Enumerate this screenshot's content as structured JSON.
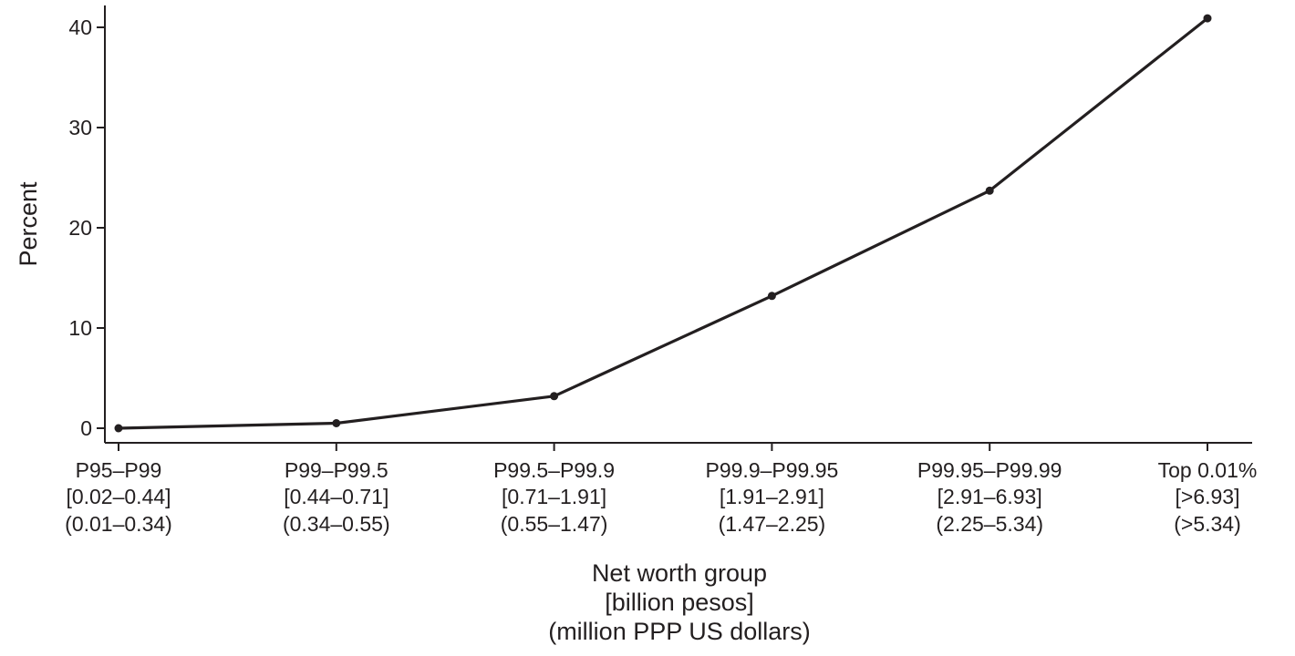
{
  "chart_data": {
    "type": "line",
    "title": "",
    "ylabel": "Percent",
    "xlabel_lines": [
      "Net worth group",
      "[billion pesos]",
      "(million PPP US dollars)"
    ],
    "ylim": [
      0,
      41
    ],
    "yticks": [
      0,
      10,
      20,
      30,
      40
    ],
    "grid": false,
    "legend": "none",
    "line_color": "#231f20",
    "categories": [
      {
        "label": "P95–P99",
        "pesos": "[0.02–0.44]",
        "usd": "(0.01–0.34)"
      },
      {
        "label": "P99–P99.5",
        "pesos": "[0.44–0.71]",
        "usd": "(0.34–0.55)"
      },
      {
        "label": "P99.5–P99.9",
        "pesos": "[0.71–1.91]",
        "usd": "(0.55–1.47)"
      },
      {
        "label": "P99.9–P99.95",
        "pesos": "[1.91–2.91]",
        "usd": "(1.47–2.25)"
      },
      {
        "label": "P99.95–P99.99",
        "pesos": "[2.91–6.93]",
        "usd": "(2.25–5.34)"
      },
      {
        "label": "Top 0.01%",
        "pesos": "[>6.93]",
        "usd": "(>5.34)"
      }
    ],
    "series": [
      {
        "values": [
          0.0,
          0.5,
          3.2,
          13.2,
          23.7,
          40.9
        ]
      }
    ]
  }
}
